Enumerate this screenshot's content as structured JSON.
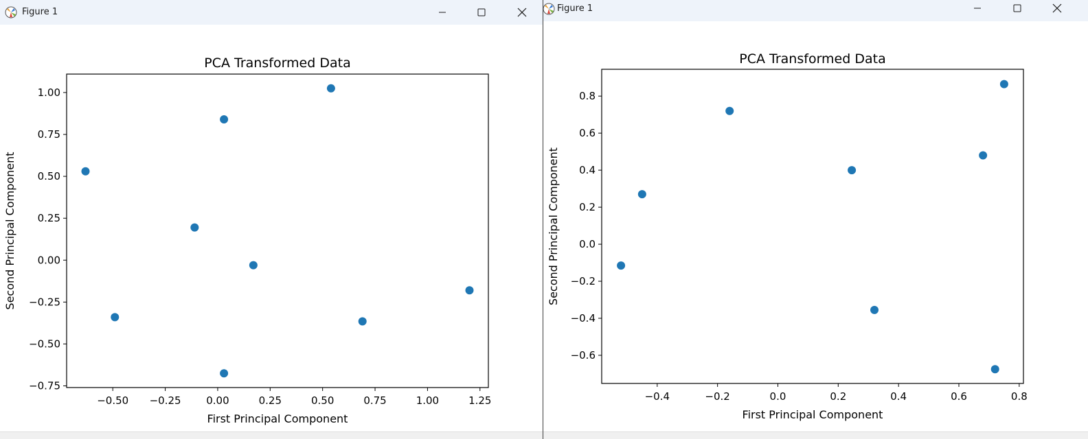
{
  "windows": [
    {
      "title": "Figure 1",
      "controls": {
        "minimize_icon": "minimize-icon",
        "maximize_icon": "maximize-icon",
        "close_icon": "close-icon"
      }
    },
    {
      "title": "Figure 1",
      "controls": {
        "minimize_icon": "minimize-icon",
        "maximize_icon": "maximize-icon",
        "close_icon": "close-icon"
      }
    }
  ],
  "colors": {
    "marker": "#1f77b4",
    "titlebar": "#eef3fa"
  },
  "chart_data": [
    {
      "type": "scatter",
      "title": "PCA Transformed Data",
      "xlabel": "First Principal Component",
      "ylabel": "Second Principal Component",
      "xlim": [
        -0.72,
        1.29
      ],
      "ylim": [
        -0.76,
        1.11
      ],
      "xticks": [
        -0.5,
        -0.25,
        0.0,
        0.25,
        0.5,
        0.75,
        1.0,
        1.25
      ],
      "xtick_labels": [
        "−0.50",
        "−0.25",
        "0.00",
        "0.25",
        "0.50",
        "0.75",
        "1.00",
        "1.25"
      ],
      "yticks": [
        -0.75,
        -0.5,
        -0.25,
        0.0,
        0.25,
        0.5,
        0.75,
        1.0
      ],
      "ytick_labels": [
        "−0.75",
        "−0.50",
        "−0.25",
        "0.00",
        "0.25",
        "0.50",
        "0.75",
        "1.00"
      ],
      "points": [
        {
          "x": -0.63,
          "y": 0.53
        },
        {
          "x": -0.49,
          "y": -0.34
        },
        {
          "x": -0.11,
          "y": 0.195
        },
        {
          "x": 0.03,
          "y": 0.84
        },
        {
          "x": 0.03,
          "y": -0.675
        },
        {
          "x": 0.17,
          "y": -0.03
        },
        {
          "x": 0.54,
          "y": 1.025
        },
        {
          "x": 0.69,
          "y": -0.365
        },
        {
          "x": 1.2,
          "y": -0.18
        }
      ]
    },
    {
      "type": "scatter",
      "title": "PCA Transformed Data",
      "xlabel": "First Principal Component",
      "ylabel": "Second Principal Component",
      "xlim": [
        -0.584,
        0.814
      ],
      "ylim": [
        -0.752,
        0.945
      ],
      "xticks": [
        -0.4,
        -0.2,
        0.0,
        0.2,
        0.4,
        0.6,
        0.8
      ],
      "xtick_labels": [
        "−0.4",
        "−0.2",
        "0.0",
        "0.2",
        "0.4",
        "0.6",
        "0.8"
      ],
      "yticks": [
        -0.6,
        -0.4,
        -0.2,
        0.0,
        0.2,
        0.4,
        0.6,
        0.8
      ],
      "ytick_labels": [
        "−0.6",
        "−0.4",
        "−0.2",
        "0.0",
        "0.2",
        "0.4",
        "0.6",
        "0.8"
      ],
      "points": [
        {
          "x": -0.52,
          "y": -0.115
        },
        {
          "x": -0.45,
          "y": 0.27
        },
        {
          "x": -0.16,
          "y": 0.72
        },
        {
          "x": 0.245,
          "y": 0.4
        },
        {
          "x": 0.32,
          "y": -0.355
        },
        {
          "x": 0.68,
          "y": 0.48
        },
        {
          "x": 0.72,
          "y": -0.675
        },
        {
          "x": 0.75,
          "y": 0.865
        }
      ]
    }
  ]
}
